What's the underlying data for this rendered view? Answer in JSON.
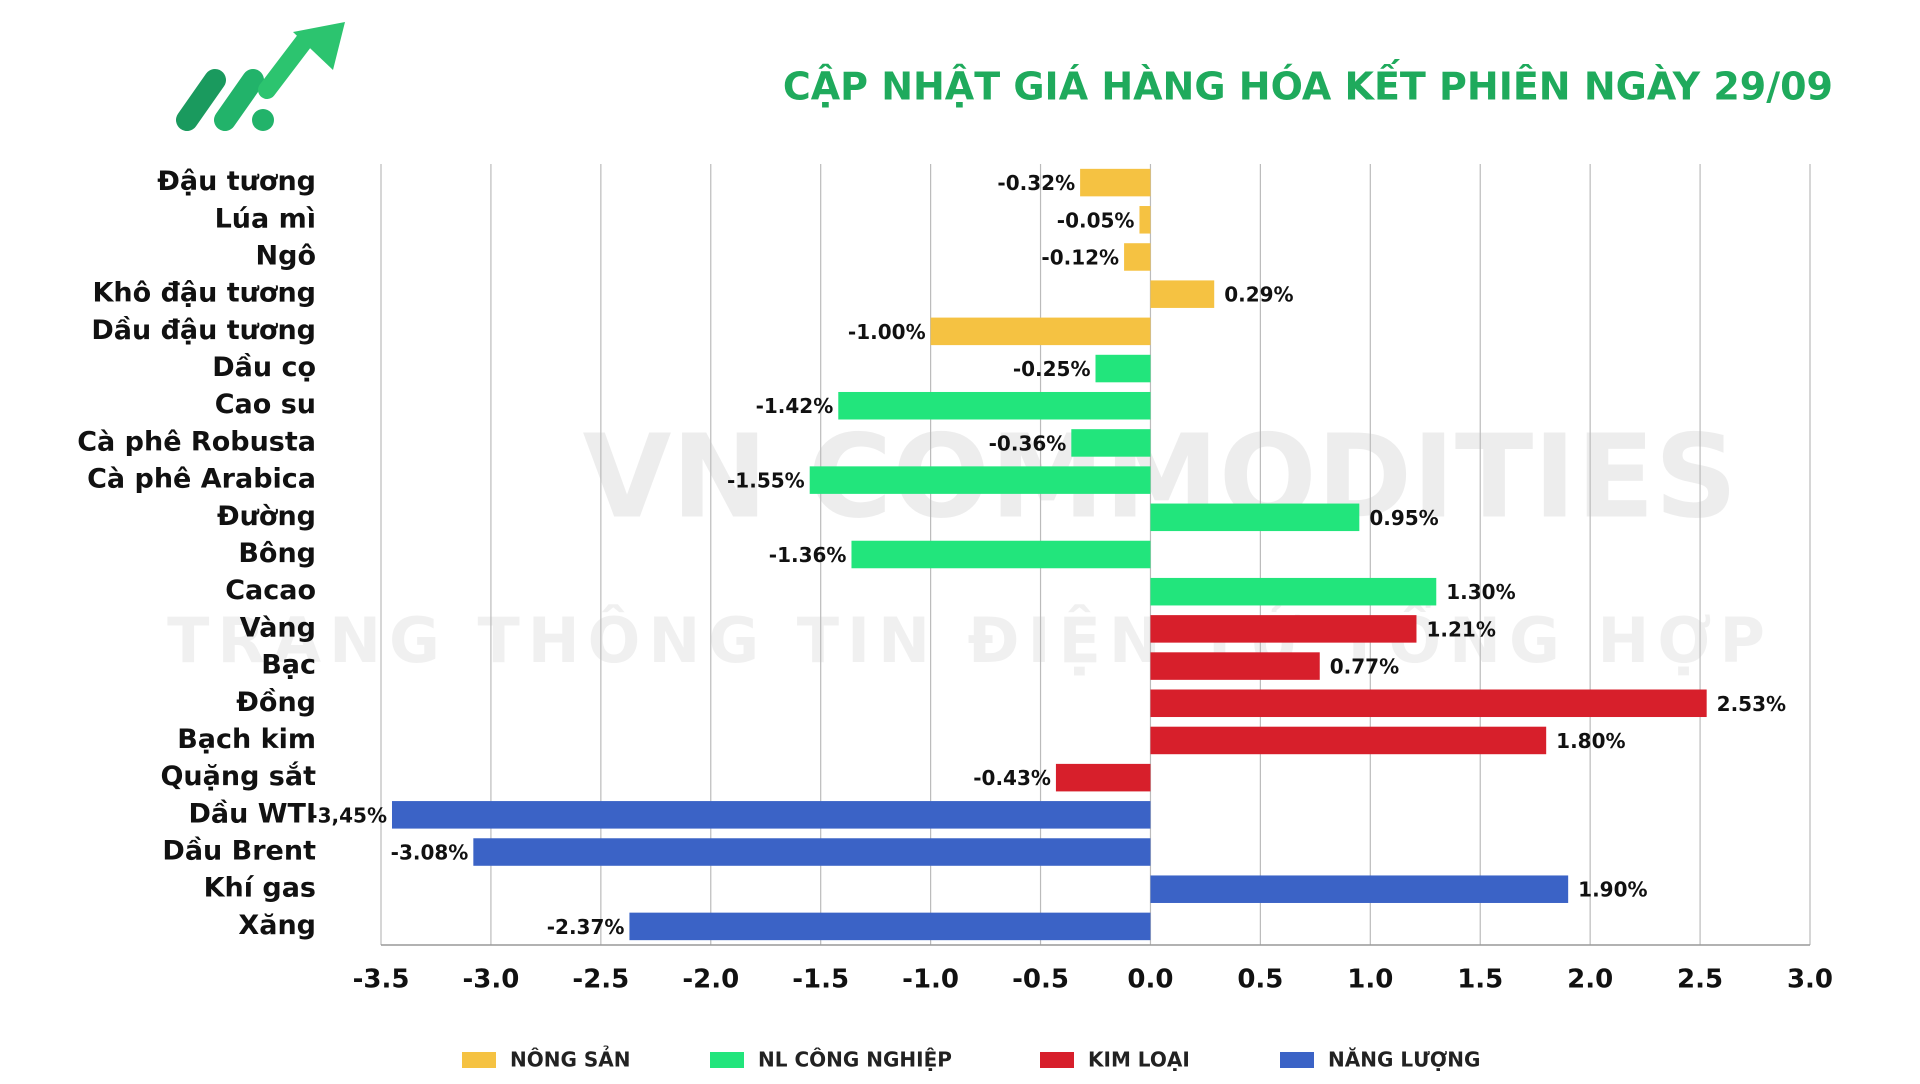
{
  "chart_data": {
    "type": "hbar",
    "title": "CẬP NHẬT GIÁ HÀNG HÓA KẾT PHIÊN NGÀY 29/09",
    "watermark": [
      "VN COMMODITIES",
      "TRANG THÔNG TIN ĐIỆN TỬ TỔNG HỢP"
    ],
    "categories": [
      "Đậu tương",
      "Lúa mì",
      "Ngô",
      "Khô đậu tương",
      "Dầu đậu tương",
      "Dầu cọ",
      "Cao su",
      "Cà phê Robusta",
      "Cà phê Arabica",
      "Đường",
      "Bông",
      "Cacao",
      "Vàng",
      "Bạc",
      "Đồng",
      "Bạch kim",
      "Quặng sắt",
      "Dầu WTI",
      "Dầu Brent",
      "Khí gas",
      "Xăng"
    ],
    "series": [
      {
        "name": "NÔNG SẢN",
        "color": "#f5c242",
        "values": [
          -0.32,
          -0.05,
          -0.12,
          0.29,
          -1.0,
          null,
          null,
          null,
          null,
          null,
          null,
          null,
          null,
          null,
          null,
          null,
          null,
          null,
          null,
          null,
          null
        ],
        "value_labels": [
          "-0.32%",
          "-0.05%",
          "-0.12%",
          "0.29%",
          "-1.00%",
          null,
          null,
          null,
          null,
          null,
          null,
          null,
          null,
          null,
          null,
          null,
          null,
          null,
          null,
          null,
          null
        ]
      },
      {
        "name": "NL CÔNG NGHIỆP",
        "color": "#22e57c",
        "values": [
          null,
          null,
          null,
          null,
          null,
          -0.25,
          -1.42,
          -0.36,
          -1.55,
          0.95,
          -1.36,
          1.3,
          null,
          null,
          null,
          null,
          null,
          null,
          null,
          null,
          null
        ],
        "value_labels": [
          null,
          null,
          null,
          null,
          null,
          "-0.25%",
          "-1.42%",
          "-0.36%",
          "-1.55%",
          "0.95%",
          "-1.36%",
          "1.30%",
          null,
          null,
          null,
          null,
          null,
          null,
          null,
          null,
          null
        ]
      },
      {
        "name": "KIM LOẠI",
        "color": "#d71f2b",
        "values": [
          null,
          null,
          null,
          null,
          null,
          null,
          null,
          null,
          null,
          null,
          null,
          null,
          1.21,
          0.77,
          2.53,
          1.8,
          -0.43,
          null,
          null,
          null,
          null
        ],
        "value_labels": [
          null,
          null,
          null,
          null,
          null,
          null,
          null,
          null,
          null,
          null,
          null,
          null,
          "1.21%",
          "0.77%",
          "2.53%",
          "1.80%",
          "-0.43%",
          null,
          null,
          null,
          null
        ]
      },
      {
        "name": "NĂNG LƯỢNG",
        "color": "#3b63c6",
        "values": [
          null,
          null,
          null,
          null,
          null,
          null,
          null,
          null,
          null,
          null,
          null,
          null,
          null,
          null,
          null,
          null,
          null,
          -3.45,
          -3.08,
          1.9,
          -2.37
        ],
        "value_labels": [
          null,
          null,
          null,
          null,
          null,
          null,
          null,
          null,
          null,
          null,
          null,
          null,
          null,
          null,
          null,
          null,
          null,
          "-3,45%",
          "-3.08%",
          "1.90%",
          "-2.37%"
        ]
      }
    ],
    "xlim": [
      -3.5,
      3.0
    ],
    "xticks": [
      -3.5,
      {
        "value": -3,
        "label": "-3.0"
      },
      -2.5,
      {
        "value": -2,
        "label": "-2.0"
      },
      -1.5,
      {
        "value": -1,
        "label": "-1.0"
      },
      -0.5,
      {
        "value": 0,
        "label": "0.0"
      },
      0.5,
      {
        "value": 1,
        "label": "1.0"
      },
      1.5,
      {
        "value": 2,
        "label": "2.0"
      },
      2.5,
      {
        "value": 3,
        "label": "3.0"
      }
    ],
    "grid": true
  }
}
